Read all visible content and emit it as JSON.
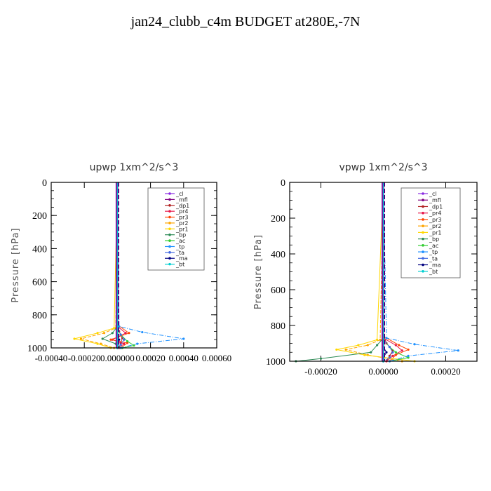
{
  "title": "jan24_clubb_c4m  BUDGET at280E,-7N",
  "legend_labels": [
    "_cl",
    "_mfl",
    "_dp1",
    "_pr4",
    "_pr3",
    "_pr2",
    "_pr1",
    "_bp",
    "_ac",
    "_tp",
    "_ta",
    "_ma",
    "_bt"
  ],
  "series_colors": [
    "#8a2be2",
    "#800080",
    "#b22222",
    "#e8174a",
    "#ff4500",
    "#ffa500",
    "#ffd700",
    "#2e8b57",
    "#32cd32",
    "#1e90ff",
    "#4169e1",
    "#000080",
    "#00cfd1"
  ],
  "chart_data": [
    {
      "type": "line",
      "title": "upwp  1xm^2/s^3",
      "ylabel": "Pressure [hPa]",
      "xlim": [
        -0.0004,
        0.0006
      ],
      "ylim": [
        1000,
        0
      ],
      "x_ticks": [
        "-0.00040",
        "-0.00020",
        "0.000000",
        "0.00020",
        "0.00040",
        "0.00060"
      ],
      "y_ticks": [
        "0",
        "200",
        "400",
        "600",
        "800",
        "1000"
      ],
      "legend_position": "top-right",
      "series": [
        {
          "name": "_cl",
          "x": [
            0,
            0,
            0,
            0,
            0
          ],
          "y": [
            0,
            300,
            600,
            900,
            1000
          ]
        },
        {
          "name": "_mfl",
          "x": [
            0,
            0,
            0,
            0,
            0
          ],
          "y": [
            0,
            300,
            600,
            900,
            1000
          ]
        },
        {
          "name": "_dp1",
          "x": [
            0,
            0,
            1e-05,
            3e-05,
            2e-05,
            1e-05
          ],
          "y": [
            0,
            850,
            900,
            940,
            970,
            1000
          ]
        },
        {
          "name": "_pr4",
          "x": [
            0,
            0,
            5e-05,
            -3e-05,
            4e-05,
            1e-05
          ],
          "y": [
            0,
            870,
            910,
            950,
            975,
            1000
          ]
        },
        {
          "name": "_pr3",
          "x": [
            0,
            0,
            7e-05,
            -4e-05,
            6e-05,
            2e-05
          ],
          "y": [
            0,
            860,
            910,
            950,
            970,
            1000
          ]
        },
        {
          "name": "_pr2",
          "x": [
            0,
            -1e-05,
            -8e-05,
            -0.00022,
            -0.0001,
            -2e-05
          ],
          "y": [
            0,
            880,
            910,
            945,
            975,
            1000
          ]
        },
        {
          "name": "_pr1",
          "x": [
            0,
            -2e-05,
            -0.00012,
            -0.00026,
            -0.00012,
            -4e-05
          ],
          "y": [
            0,
            880,
            910,
            945,
            975,
            1000
          ]
        },
        {
          "name": "_bp",
          "x": [
            0,
            0,
            -3e-05,
            -9e-05,
            -1e-05,
            2e-05
          ],
          "y": [
            0,
            870,
            910,
            945,
            975,
            1000
          ]
        },
        {
          "name": "_ac",
          "x": [
            0,
            0,
            2e-05,
            6e-05,
            0.0001,
            3e-05
          ],
          "y": [
            0,
            880,
            920,
            960,
            985,
            1000
          ]
        },
        {
          "name": "_tp",
          "x": [
            0,
            1e-05,
            0.00015,
            0.0004,
            0.00012,
            2e-05
          ],
          "y": [
            0,
            870,
            905,
            945,
            975,
            1000
          ]
        },
        {
          "name": "_ta",
          "x": [
            0,
            0,
            2e-05,
            4e-05,
            2e-05,
            0
          ],
          "y": [
            0,
            880,
            920,
            950,
            980,
            1000
          ]
        },
        {
          "name": "_ma",
          "x": [
            0,
            0,
            0,
            1e-05,
            0,
            0
          ],
          "y": [
            0,
            880,
            920,
            950,
            980,
            1000
          ]
        },
        {
          "name": "_bt",
          "x": [
            0,
            0,
            0,
            0,
            0
          ],
          "y": [
            0,
            300,
            600,
            900,
            1000
          ]
        }
      ]
    },
    {
      "type": "line",
      "title": "vpwp  1xm^2/s^3",
      "ylabel": "Pressure [hPa]",
      "xlim": [
        -0.0003,
        0.0003
      ],
      "ylim": [
        1000,
        0
      ],
      "x_ticks": [
        "-0.00020",
        "0.00000",
        "0.00020"
      ],
      "y_ticks": [
        "0",
        "200",
        "400",
        "600",
        "800",
        "1000"
      ],
      "legend_position": "top-right",
      "series": [
        {
          "name": "_cl",
          "x": [
            0,
            0,
            0,
            0,
            0
          ],
          "y": [
            0,
            300,
            600,
            900,
            1000
          ]
        },
        {
          "name": "_mfl",
          "x": [
            0,
            0,
            0,
            0,
            0
          ],
          "y": [
            0,
            300,
            600,
            900,
            1000
          ]
        },
        {
          "name": "_dp1",
          "x": [
            0,
            0,
            1e-05,
            3e-05,
            2e-05,
            1e-05
          ],
          "y": [
            0,
            850,
            900,
            940,
            970,
            1000
          ]
        },
        {
          "name": "_pr4",
          "x": [
            0,
            0,
            4e-05,
            6e-05,
            3e-05,
            1e-05
          ],
          "y": [
            0,
            870,
            910,
            940,
            970,
            1000
          ]
        },
        {
          "name": "_pr3",
          "x": [
            0,
            0,
            5e-05,
            8e-05,
            4e-05,
            2e-05
          ],
          "y": [
            0,
            860,
            910,
            935,
            965,
            1000
          ]
        },
        {
          "name": "_pr2",
          "x": [
            0,
            -1e-05,
            -5e-05,
            -0.00012,
            -5e-05,
            6e-05
          ],
          "y": [
            0,
            880,
            910,
            935,
            965,
            1000
          ]
        },
        {
          "name": "_pr1",
          "x": [
            0,
            -2e-05,
            -8e-05,
            -0.00015,
            -6e-05,
            0.0001
          ],
          "y": [
            0,
            880,
            910,
            935,
            965,
            1000
          ]
        },
        {
          "name": "_bp",
          "x": [
            0,
            0,
            -2e-05,
            -4e-05,
            -0.0002,
            -0.00028
          ],
          "y": [
            0,
            870,
            910,
            950,
            985,
            1000
          ]
        },
        {
          "name": "_ac",
          "x": [
            0,
            0,
            2e-05,
            4e-05,
            8e-05,
            2e-05
          ],
          "y": [
            0,
            880,
            920,
            950,
            980,
            1000
          ]
        },
        {
          "name": "_tp",
          "x": [
            0,
            1e-05,
            0.0001,
            0.00024,
            8e-05,
            2e-05
          ],
          "y": [
            0,
            870,
            905,
            940,
            970,
            1000
          ]
        },
        {
          "name": "_ta",
          "x": [
            0,
            0,
            2e-05,
            3e-05,
            2e-05,
            0
          ],
          "y": [
            0,
            880,
            920,
            950,
            980,
            1000
          ]
        },
        {
          "name": "_ma",
          "x": [
            0,
            0,
            0,
            1e-05,
            0,
            0
          ],
          "y": [
            0,
            880,
            920,
            950,
            980,
            1000
          ]
        },
        {
          "name": "_bt",
          "x": [
            0,
            0,
            0,
            0,
            0
          ],
          "y": [
            0,
            300,
            600,
            900,
            1000
          ]
        }
      ]
    }
  ]
}
